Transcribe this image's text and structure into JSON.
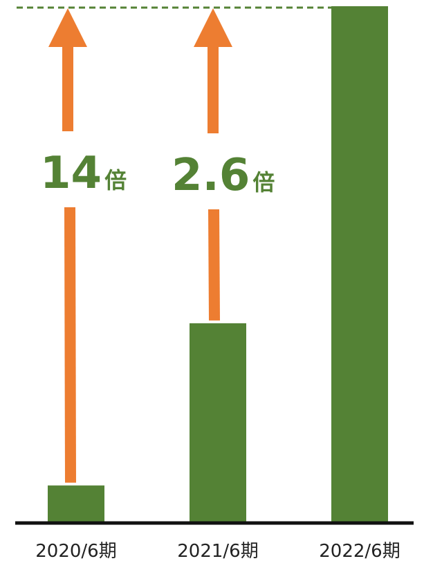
{
  "colors": {
    "bar": "#548235",
    "arrow": "#ED7D31",
    "axis": "#111111",
    "reference_line": "#548235",
    "label_text": "#548235"
  },
  "chart_data": {
    "type": "bar",
    "title": "",
    "xlabel": "",
    "ylabel": "",
    "categories": [
      "2020/6期",
      "2021/6期",
      "2022/6期"
    ],
    "values": [
      1,
      5.4,
      14
    ],
    "ylim": [
      0,
      14
    ],
    "grid": false,
    "legend": "none",
    "reference_line": {
      "style": "dashed",
      "value": 14
    },
    "annotations": [
      {
        "from_category": 0,
        "multiplier": "14",
        "unit": "倍"
      },
      {
        "from_category": 1,
        "multiplier": "2.6",
        "unit": "倍"
      }
    ]
  }
}
